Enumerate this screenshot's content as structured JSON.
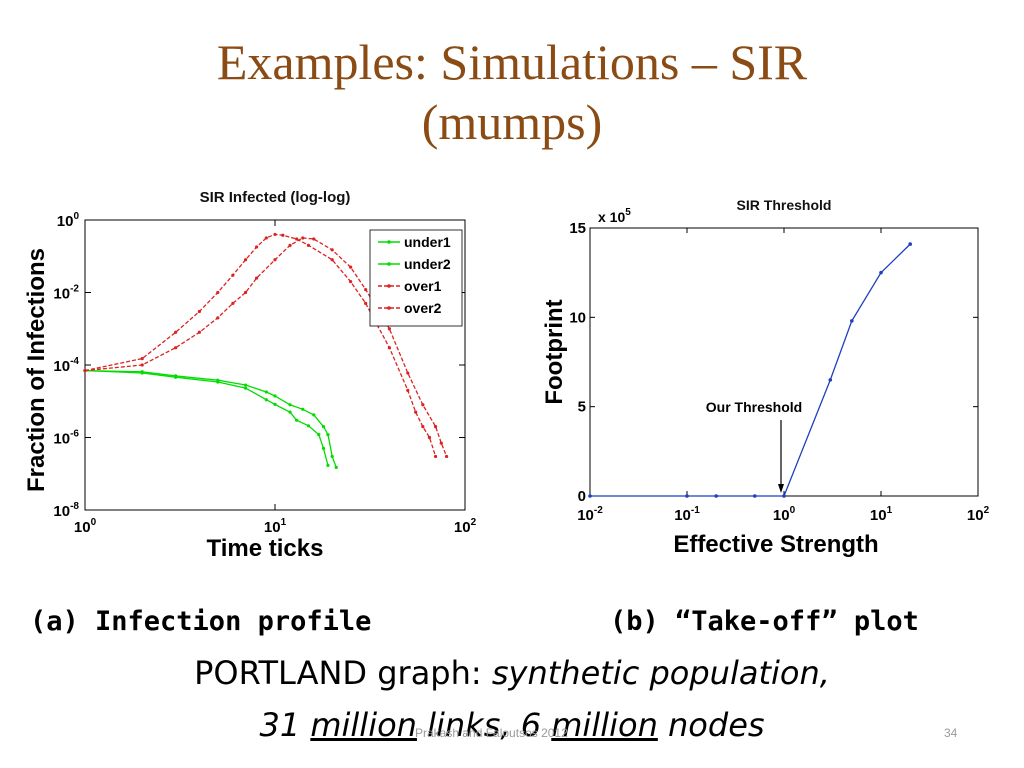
{
  "slide": {
    "title_line1": "Examples: Simulations – SIR",
    "title_line2": "(mumps)",
    "caption_a": "(a) Infection profile",
    "caption_b": "(b) “Take-off” plot",
    "desc_prefix": "PORTLAND graph: ",
    "desc_italic": "synthetic population,",
    "desc2_31": "31 ",
    "desc2_million1": "million",
    "desc2_links": " links",
    "desc2_comma": ", ",
    "desc2_6": "6 ",
    "desc2_million2": "million",
    "desc2_nodes": " nodes",
    "footer": "Prakash and Faloutsos 2012",
    "page_number": "34"
  },
  "chart_data": [
    {
      "type": "line",
      "title": "SIR Infected (log-log)",
      "xlabel": "Time ticks",
      "ylabel": "Fraction of Infections",
      "xscale": "log",
      "yscale": "log",
      "xlim": [
        1,
        100
      ],
      "ylim": [
        1e-08,
        1
      ],
      "xticks": [
        {
          "v": 1,
          "base": "10",
          "exp": "0"
        },
        {
          "v": 10,
          "base": "10",
          "exp": "1"
        },
        {
          "v": 100,
          "base": "10",
          "exp": "2"
        }
      ],
      "yticks": [
        {
          "v": 1,
          "base": "10",
          "exp": "0"
        },
        {
          "v": 0.01,
          "base": "10",
          "exp": "-2"
        },
        {
          "v": 0.0001,
          "base": "10",
          "exp": "-4"
        },
        {
          "v": 1e-06,
          "base": "10",
          "exp": "-6"
        },
        {
          "v": 1e-08,
          "base": "10",
          "exp": "-8"
        }
      ],
      "legend_position": "top-right",
      "series": [
        {
          "name": "under1",
          "color": "#00dd00",
          "dashed": false,
          "x": [
            1,
            2,
            3,
            5,
            7,
            9,
            10,
            12,
            14,
            16,
            18,
            19,
            20,
            21
          ],
          "y": [
            7e-05,
            6.5e-05,
            5e-05,
            3.8e-05,
            2.8e-05,
            1.8e-05,
            1.4e-05,
            8e-06,
            6e-06,
            4.2e-06,
            2e-06,
            1.2e-06,
            3e-07,
            1.5e-07
          ]
        },
        {
          "name": "under2",
          "color": "#00dd00",
          "dashed": false,
          "x": [
            1,
            2,
            3,
            5,
            7,
            9,
            10,
            12,
            13,
            15,
            17,
            18,
            19
          ],
          "y": [
            7e-05,
            6e-05,
            4.6e-05,
            3.4e-05,
            2.3e-05,
            1.1e-05,
            8.2e-06,
            5e-06,
            3e-06,
            2.1e-06,
            1.2e-06,
            5e-07,
            1.7e-07
          ]
        },
        {
          "name": "over1",
          "color": "#dd2222",
          "dashed": true,
          "x": [
            1,
            2,
            3,
            4,
            5,
            6,
            7,
            8,
            9,
            10,
            11,
            13,
            15,
            20,
            25,
            30,
            40,
            50,
            55,
            60,
            65,
            70
          ],
          "y": [
            7e-05,
            0.00015,
            0.0008,
            0.003,
            0.01,
            0.03,
            0.08,
            0.18,
            0.32,
            0.4,
            0.38,
            0.3,
            0.2,
            0.08,
            0.02,
            0.005,
            0.0003,
            2e-05,
            5e-06,
            2e-06,
            1e-06,
            3e-07
          ]
        },
        {
          "name": "over2",
          "color": "#dd2222",
          "dashed": true,
          "x": [
            1,
            2,
            3,
            4,
            5,
            6,
            7,
            8,
            10,
            12,
            14,
            16,
            20,
            25,
            30,
            40,
            50,
            60,
            70,
            75,
            80
          ],
          "y": [
            7e-05,
            0.0001,
            0.0003,
            0.0008,
            0.002,
            0.005,
            0.01,
            0.025,
            0.08,
            0.2,
            0.32,
            0.3,
            0.15,
            0.05,
            0.012,
            0.001,
            6e-05,
            8e-06,
            2e-06,
            7e-07,
            3e-07
          ]
        }
      ]
    },
    {
      "type": "line",
      "title": "SIR Threshold",
      "xlabel": "Effective Strength",
      "ylabel": "Footprint",
      "y_multiplier": {
        "base": "x 10",
        "exp": "5"
      },
      "xscale": "log",
      "xlim": [
        0.01,
        100
      ],
      "ylim": [
        0,
        15
      ],
      "xticks": [
        {
          "v": 0.01,
          "base": "10",
          "exp": "-2"
        },
        {
          "v": 0.1,
          "base": "10",
          "exp": "-1"
        },
        {
          "v": 1,
          "base": "10",
          "exp": "0"
        },
        {
          "v": 10,
          "base": "10",
          "exp": "1"
        },
        {
          "v": 100,
          "base": "10",
          "exp": "2"
        }
      ],
      "yticks": [
        {
          "v": 0,
          "label": "0"
        },
        {
          "v": 5,
          "label": "5"
        },
        {
          "v": 10,
          "label": "10"
        },
        {
          "v": 15,
          "label": "15"
        }
      ],
      "annotation": {
        "text": "Our Threshold",
        "x": 1,
        "y": 0
      },
      "series": [
        {
          "color": "#1f3fbf",
          "dashed": false,
          "x": [
            0.01,
            0.1,
            0.2,
            0.5,
            1,
            3,
            5,
            10,
            20
          ],
          "y": [
            0,
            0,
            0,
            0,
            0,
            6.5,
            9.8,
            12.5,
            14.1
          ]
        }
      ]
    }
  ]
}
